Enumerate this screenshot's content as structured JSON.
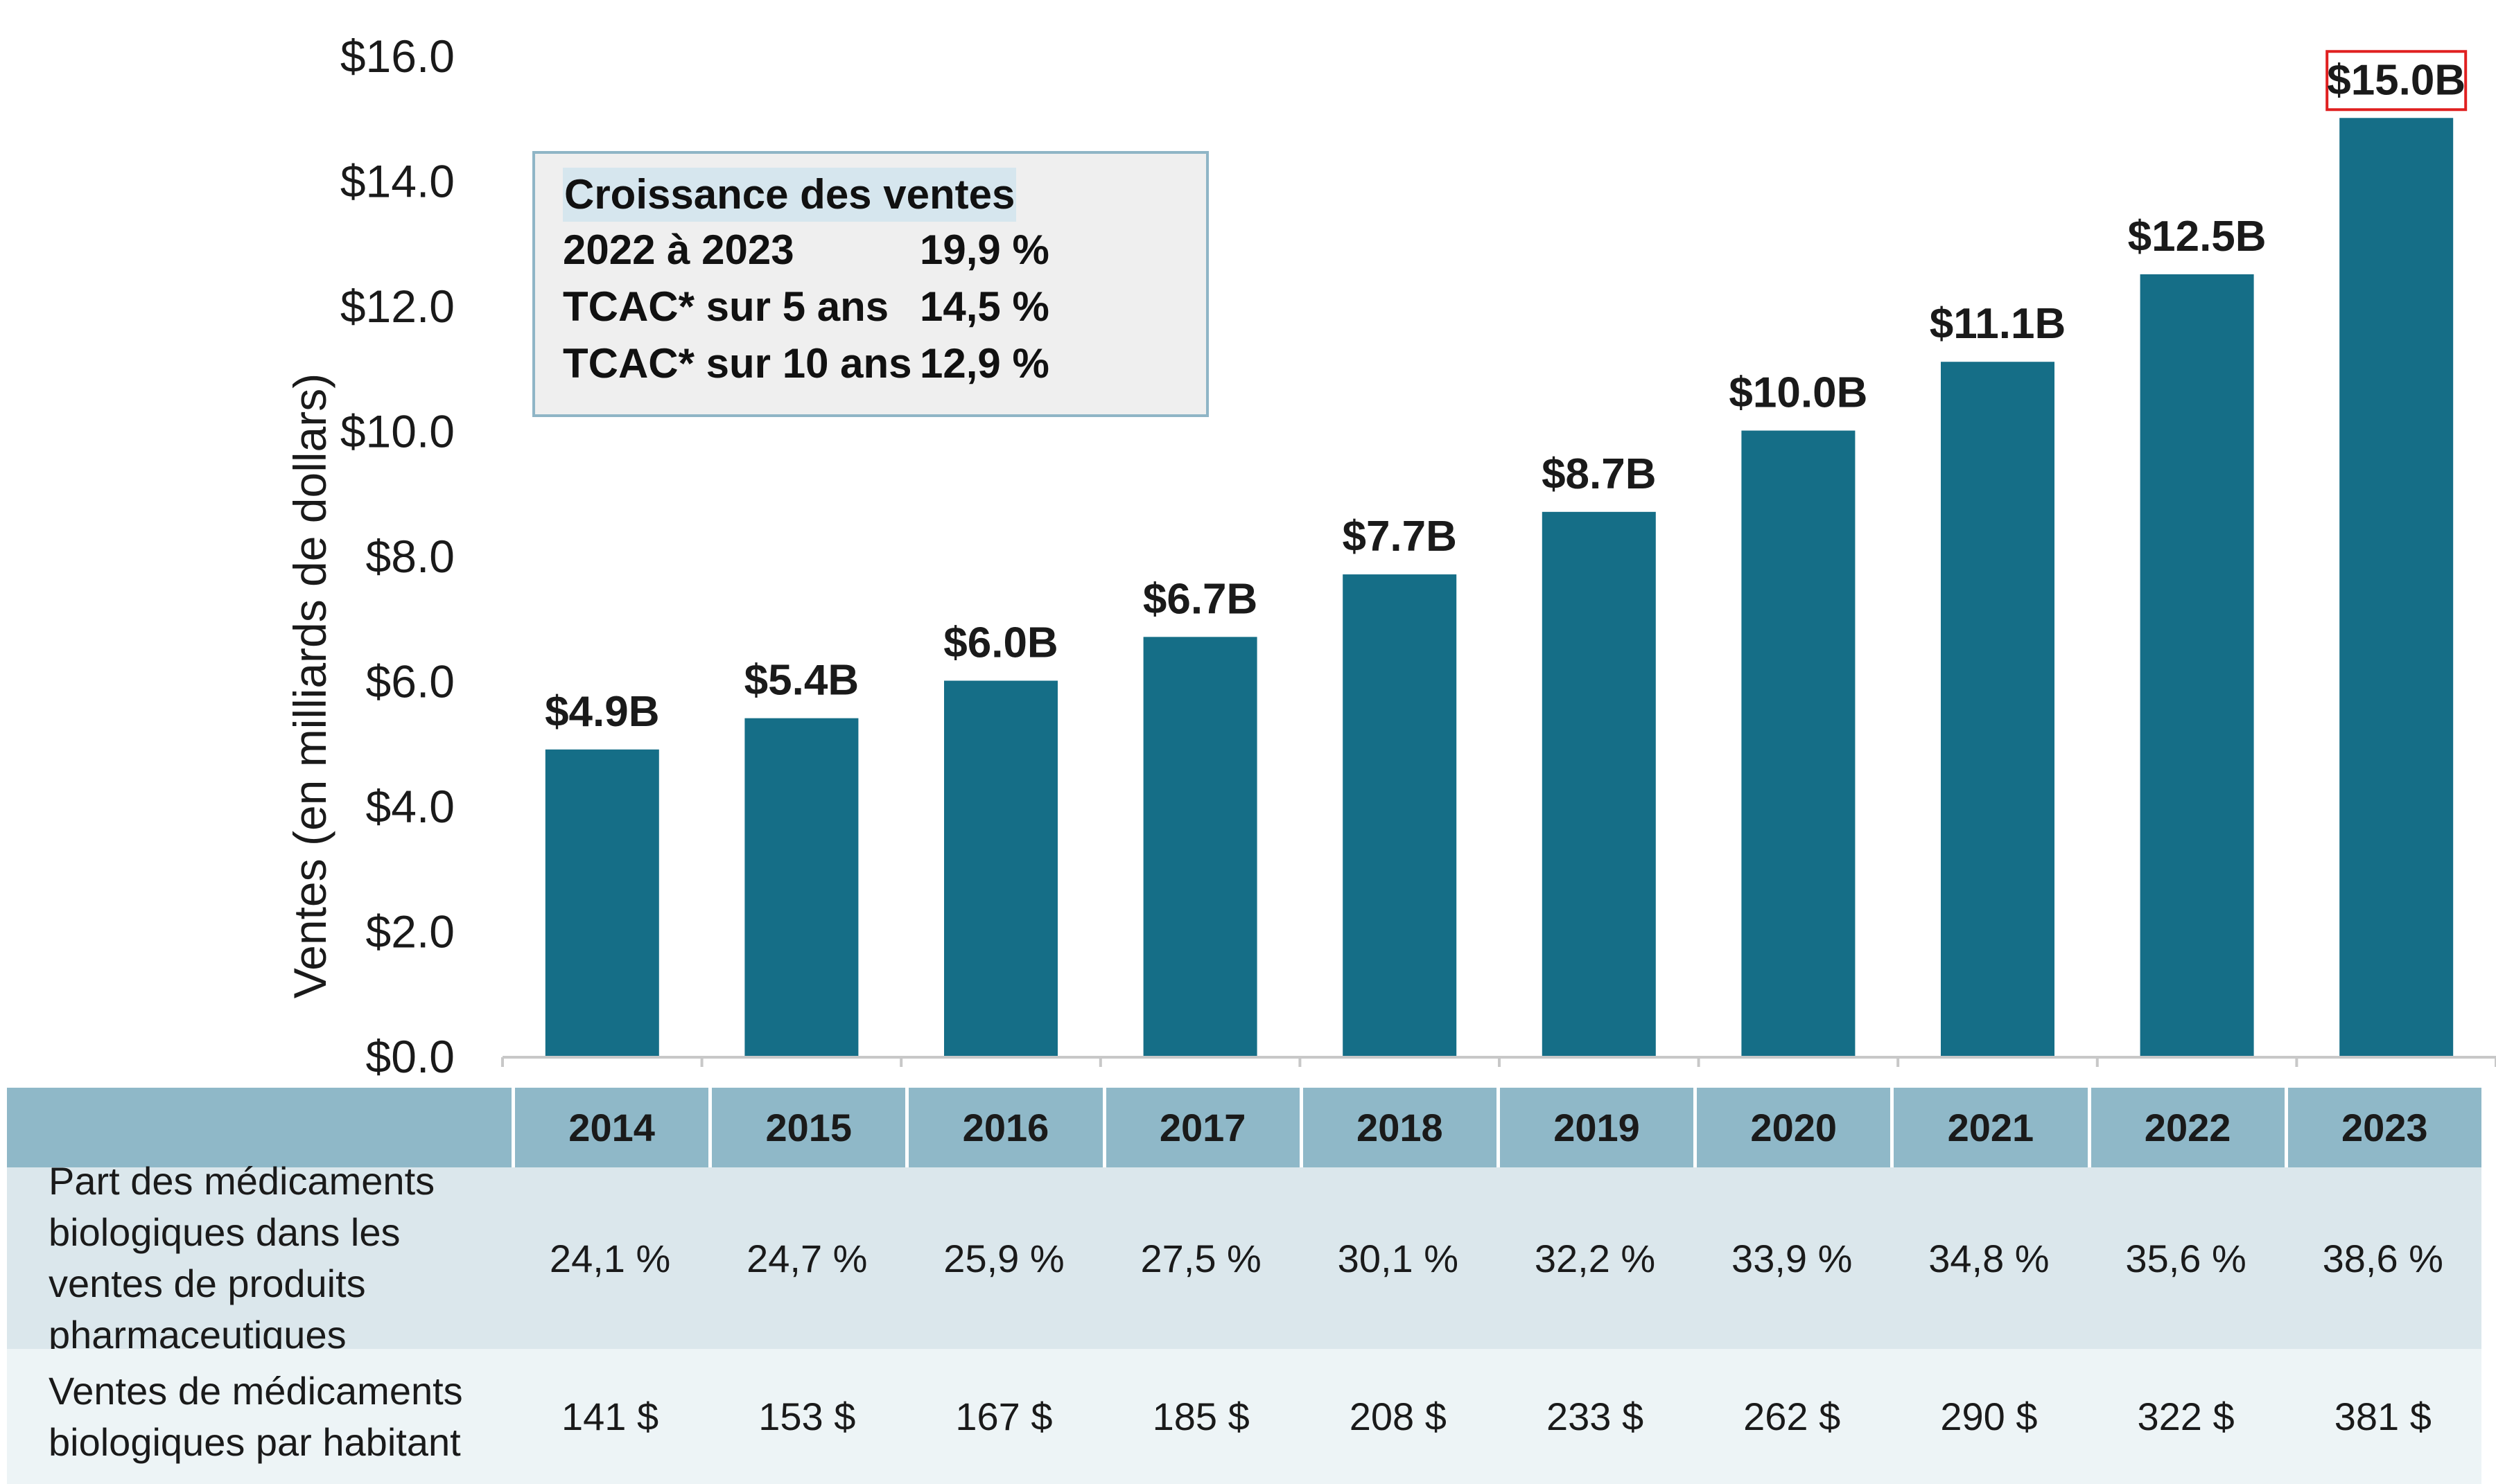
{
  "chart_data": {
    "type": "bar",
    "categories": [
      "2014",
      "2015",
      "2016",
      "2017",
      "2018",
      "2019",
      "2020",
      "2021",
      "2022",
      "2023"
    ],
    "values": [
      4.9,
      5.4,
      6.0,
      6.7,
      7.7,
      8.7,
      10.0,
      11.1,
      12.5,
      15.0
    ],
    "data_labels": [
      "$4.9B",
      "$5.4B",
      "$6.0B",
      "$6.7B",
      "$7.7B",
      "$8.7B",
      "$10.0B",
      "$11.1B",
      "$12.5B",
      "$15.0B"
    ],
    "highlighted_label_index": 9,
    "ylabel": "Ventes (en milliards de dollars)",
    "yticks": [
      "$0.0",
      "$2.0",
      "$4.0",
      "$6.0",
      "$8.0",
      "$10.0",
      "$12.0",
      "$14.0",
      "$16.0"
    ],
    "ylim": [
      0,
      16
    ],
    "bar_color": "#156e87",
    "highlight_color": "#e02020",
    "grid": false
  },
  "growth_box": {
    "title": "Croissance des ventes",
    "rows": [
      {
        "label": "2022 à 2023",
        "value": "19,9 %"
      },
      {
        "label": "TCAC* sur 5 ans",
        "value": "14,5 %"
      },
      {
        "label": "TCAC* sur 10 ans",
        "value": "12,9 %"
      }
    ]
  },
  "table": {
    "years": [
      "2014",
      "2015",
      "2016",
      "2017",
      "2018",
      "2019",
      "2020",
      "2021",
      "2022",
      "2023"
    ],
    "rows": [
      {
        "label": "Part des médicaments biologiques dans les ventes de produits pharmaceutiques",
        "values": [
          "24,1 %",
          "24,7 %",
          "25,9 %",
          "27,5 %",
          "30,1 %",
          "32,2 %",
          "33,9 %",
          "34,8 %",
          "35,6 %",
          "38,6 %"
        ]
      },
      {
        "label": "Ventes de médicaments biologiques par habitant",
        "values": [
          "141 $",
          "153 $",
          "167 $",
          "185 $",
          "208 $",
          "233 $",
          "262 $",
          "290 $",
          "322 $",
          "381 $"
        ]
      }
    ]
  }
}
